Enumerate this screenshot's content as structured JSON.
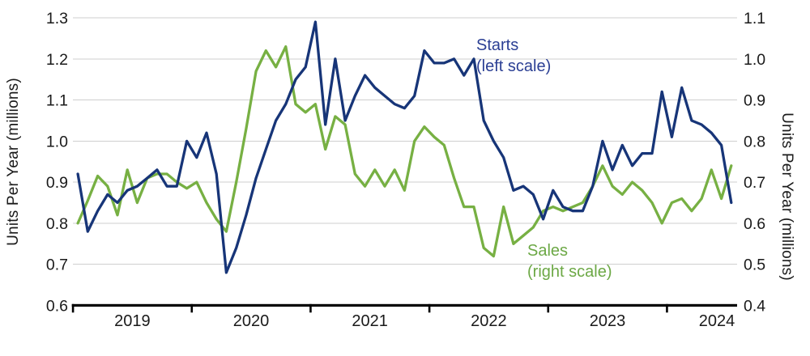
{
  "page": {
    "background": "#ffffff"
  },
  "chart_data": {
    "type": "line",
    "title": "",
    "frequency": "monthly",
    "x_start": "2019-01",
    "x_end": "2024-07",
    "x_tick_labels": [
      "2019",
      "2020",
      "2021",
      "2022",
      "2023",
      "2024"
    ],
    "grid": true,
    "legend_position": "inline-annotations",
    "left_axis": {
      "title": "Units Per Year (millions)",
      "min": 0.6,
      "max": 1.3,
      "tick_labels": [
        "1.3",
        "1.2",
        "1.1",
        "1.0",
        "0.9",
        "0.8",
        "0.7",
        "0.6"
      ]
    },
    "right_axis": {
      "title": "Units Per Year (millions)",
      "min": 0.4,
      "max": 1.1,
      "tick_labels": [
        "1.1",
        "1.0",
        "0.9",
        "0.8",
        "0.7",
        "0.6",
        "0.5",
        "0.4"
      ]
    },
    "series": [
      {
        "name": "Starts",
        "axis": "left",
        "color": "#173578",
        "values": [
          0.92,
          0.78,
          0.83,
          0.87,
          0.85,
          0.88,
          0.89,
          0.91,
          0.93,
          0.89,
          0.89,
          1.0,
          0.96,
          1.02,
          0.92,
          0.68,
          0.74,
          0.82,
          0.91,
          0.98,
          1.05,
          1.09,
          1.15,
          1.18,
          1.29,
          1.04,
          1.2,
          1.05,
          1.11,
          1.16,
          1.13,
          1.11,
          1.09,
          1.08,
          1.11,
          1.22,
          1.19,
          1.19,
          1.2,
          1.16,
          1.2,
          1.05,
          1.0,
          0.96,
          0.88,
          0.89,
          0.87,
          0.81,
          0.88,
          0.84,
          0.83,
          0.83,
          0.89,
          1.0,
          0.93,
          0.99,
          0.94,
          0.97,
          0.97,
          1.12,
          1.01,
          1.13,
          1.05,
          1.04,
          1.02,
          0.99,
          0.85
        ]
      },
      {
        "name": "Sales",
        "axis": "right",
        "color": "#77B043",
        "values": [
          0.6,
          0.655,
          0.715,
          0.69,
          0.62,
          0.73,
          0.65,
          0.71,
          0.72,
          0.72,
          0.7,
          0.685,
          0.7,
          0.65,
          0.61,
          0.58,
          0.7,
          0.83,
          0.97,
          1.02,
          0.98,
          1.03,
          0.89,
          0.87,
          0.89,
          0.78,
          0.86,
          0.84,
          0.72,
          0.69,
          0.73,
          0.69,
          0.73,
          0.68,
          0.8,
          0.835,
          0.81,
          0.79,
          0.71,
          0.64,
          0.64,
          0.54,
          0.52,
          0.64,
          0.55,
          0.57,
          0.59,
          0.63,
          0.64,
          0.63,
          0.64,
          0.65,
          0.69,
          0.74,
          0.69,
          0.67,
          0.7,
          0.68,
          0.65,
          0.6,
          0.65,
          0.66,
          0.63,
          0.66,
          0.73,
          0.66,
          0.74
        ]
      }
    ]
  },
  "annotations": {
    "starts": {
      "line1": "Starts",
      "line2": "(left scale)",
      "color": "#2B3F94"
    },
    "sales": {
      "line1": "Sales",
      "line2": "(right scale)",
      "color": "#6CA845"
    }
  },
  "colors": {
    "grid": "#CFCFCF",
    "axis": "#000000",
    "tick_label": "#1A1A1A"
  }
}
